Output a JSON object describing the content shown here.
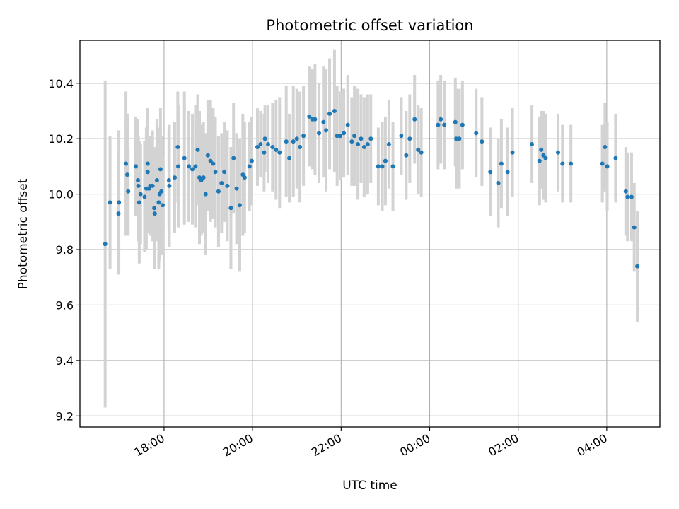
{
  "chart_data": {
    "type": "scatter",
    "title": "Photometric offset variation",
    "xlabel": "UTC time",
    "ylabel": "Photometric offset",
    "x_unit": "hours since 00:00 UTC of first night (values above 24 are next day)",
    "xlim": [
      16.1,
      29.2
    ],
    "ylim": [
      9.16,
      10.555
    ],
    "x_ticks": [
      {
        "value": 18,
        "label": "18:00"
      },
      {
        "value": 20,
        "label": "20:00"
      },
      {
        "value": 22,
        "label": "22:00"
      },
      {
        "value": 24,
        "label": "00:00"
      },
      {
        "value": 26,
        "label": "02:00"
      },
      {
        "value": 28,
        "label": "04:00"
      }
    ],
    "y_ticks": [
      "9.2",
      "9.4",
      "9.6",
      "9.8",
      "10.0",
      "10.2",
      "10.4"
    ],
    "grid": true,
    "colors": {
      "marker": "#1f77b4",
      "errorbar": "#d3d3d3",
      "grid": "#b0b0b0"
    },
    "series": [
      {
        "marker": "dot",
        "points": [
          [
            16.67,
            9.82,
            0.59
          ],
          [
            16.78,
            9.97,
            0.24
          ],
          [
            16.97,
            9.93,
            0.22
          ],
          [
            16.98,
            9.97,
            0.26
          ],
          [
            17.14,
            10.11,
            0.26
          ],
          [
            17.17,
            10.07,
            0.22
          ],
          [
            17.19,
            10.01,
            0.16
          ],
          [
            17.36,
            10.1,
            0.18
          ],
          [
            17.41,
            10.05,
            0.22
          ],
          [
            17.42,
            10.03,
            0.18
          ],
          [
            17.44,
            9.97,
            0.22
          ],
          [
            17.47,
            10.0,
            0.18
          ],
          [
            17.56,
            9.99,
            0.2
          ],
          [
            17.6,
            10.02,
            0.22
          ],
          [
            17.63,
            10.11,
            0.2
          ],
          [
            17.63,
            10.08,
            0.18
          ],
          [
            17.66,
            10.02,
            0.16
          ],
          [
            17.69,
            10.03,
            0.18
          ],
          [
            17.74,
            10.03,
            0.2
          ],
          [
            17.78,
            9.95,
            0.22
          ],
          [
            17.79,
            9.93,
            0.2
          ],
          [
            17.84,
            10.05,
            0.22
          ],
          [
            17.88,
            9.97,
            0.24
          ],
          [
            17.9,
            10.0,
            0.24
          ],
          [
            17.92,
            10.09,
            0.22
          ],
          [
            17.94,
            10.01,
            0.2
          ],
          [
            17.97,
            9.96,
            0.18
          ],
          [
            18.11,
            10.05,
            0.18
          ],
          [
            18.12,
            10.03,
            0.22
          ],
          [
            18.24,
            10.06,
            0.2
          ],
          [
            18.31,
            10.17,
            0.2
          ],
          [
            18.32,
            10.1,
            0.22
          ],
          [
            18.46,
            10.13,
            0.24
          ],
          [
            18.56,
            10.1,
            0.2
          ],
          [
            18.64,
            10.09,
            0.2
          ],
          [
            18.71,
            10.1,
            0.22
          ],
          [
            18.76,
            10.16,
            0.2
          ],
          [
            18.8,
            10.06,
            0.24
          ],
          [
            18.84,
            10.05,
            0.2
          ],
          [
            18.89,
            10.06,
            0.2
          ],
          [
            18.94,
            10.0,
            0.22
          ],
          [
            18.99,
            10.14,
            0.2
          ],
          [
            19.05,
            10.12,
            0.22
          ],
          [
            19.11,
            10.11,
            0.2
          ],
          [
            19.16,
            10.08,
            0.2
          ],
          [
            19.23,
            10.01,
            0.2
          ],
          [
            19.3,
            10.04,
            0.18
          ],
          [
            19.36,
            10.08,
            0.18
          ],
          [
            19.43,
            10.03,
            0.2
          ],
          [
            19.51,
            9.95,
            0.22
          ],
          [
            19.57,
            10.13,
            0.2
          ],
          [
            19.64,
            10.02,
            0.2
          ],
          [
            19.71,
            9.96,
            0.24
          ],
          [
            19.78,
            10.07,
            0.22
          ],
          [
            19.82,
            10.06,
            0.2
          ],
          [
            19.93,
            10.1,
            0.16
          ],
          [
            19.98,
            10.12,
            0.16
          ],
          [
            20.11,
            10.17,
            0.14
          ],
          [
            20.18,
            10.18,
            0.12
          ],
          [
            20.26,
            10.15,
            0.14
          ],
          [
            20.28,
            10.2,
            0.12
          ],
          [
            20.35,
            10.18,
            0.14
          ],
          [
            20.45,
            10.17,
            0.16
          ],
          [
            20.53,
            10.16,
            0.18
          ],
          [
            20.61,
            10.15,
            0.2
          ],
          [
            20.76,
            10.19,
            0.2
          ],
          [
            20.83,
            10.13,
            0.16
          ],
          [
            20.92,
            10.19,
            0.2
          ],
          [
            21.0,
            10.2,
            0.18
          ],
          [
            21.07,
            10.17,
            0.2
          ],
          [
            21.15,
            10.21,
            0.18
          ],
          [
            21.28,
            10.28,
            0.18
          ],
          [
            21.35,
            10.27,
            0.18
          ],
          [
            21.41,
            10.27,
            0.2
          ],
          [
            21.5,
            10.22,
            0.18
          ],
          [
            21.6,
            10.26,
            0.2
          ],
          [
            21.66,
            10.23,
            0.22
          ],
          [
            21.74,
            10.29,
            0.2
          ],
          [
            21.85,
            10.3,
            0.22
          ],
          [
            21.91,
            10.21,
            0.18
          ],
          [
            21.98,
            10.21,
            0.16
          ],
          [
            22.06,
            10.22,
            0.16
          ],
          [
            22.15,
            10.25,
            0.18
          ],
          [
            22.24,
            10.19,
            0.16
          ],
          [
            22.3,
            10.21,
            0.18
          ],
          [
            22.38,
            10.18,
            0.2
          ],
          [
            22.45,
            10.2,
            0.16
          ],
          [
            22.52,
            10.17,
            0.18
          ],
          [
            22.6,
            10.18,
            0.18
          ],
          [
            22.67,
            10.2,
            0.16
          ],
          [
            22.84,
            10.1,
            0.14
          ],
          [
            22.93,
            10.1,
            0.16
          ],
          [
            23.0,
            10.12,
            0.16
          ],
          [
            23.08,
            10.18,
            0.16
          ],
          [
            23.17,
            10.1,
            0.16
          ],
          [
            23.36,
            10.21,
            0.14
          ],
          [
            23.47,
            10.14,
            0.16
          ],
          [
            23.55,
            10.2,
            0.16
          ],
          [
            23.66,
            10.27,
            0.16
          ],
          [
            23.74,
            10.16,
            0.16
          ],
          [
            23.81,
            10.15,
            0.16
          ],
          [
            24.19,
            10.25,
            0.16
          ],
          [
            24.25,
            10.27,
            0.16
          ],
          [
            24.33,
            10.25,
            0.16
          ],
          [
            24.58,
            10.26,
            0.16
          ],
          [
            24.6,
            10.2,
            0.18
          ],
          [
            24.67,
            10.2,
            0.18
          ],
          [
            24.74,
            10.25,
            0.16
          ],
          [
            25.05,
            10.22,
            0.16
          ],
          [
            25.18,
            10.19,
            0.16
          ],
          [
            25.37,
            10.08,
            0.16
          ],
          [
            25.55,
            10.04,
            0.16
          ],
          [
            25.62,
            10.11,
            0.16
          ],
          [
            25.76,
            10.08,
            0.16
          ],
          [
            25.87,
            10.15,
            0.16
          ],
          [
            26.31,
            10.18,
            0.14
          ],
          [
            26.48,
            10.12,
            0.16
          ],
          [
            26.52,
            10.16,
            0.14
          ],
          [
            26.57,
            10.14,
            0.16
          ],
          [
            26.62,
            10.13,
            0.16
          ],
          [
            26.9,
            10.15,
            0.14
          ],
          [
            27.0,
            10.11,
            0.14
          ],
          [
            27.19,
            10.11,
            0.14
          ],
          [
            27.9,
            10.11,
            0.14
          ],
          [
            27.96,
            10.17,
            0.16
          ],
          [
            28.01,
            10.1,
            0.16
          ],
          [
            28.2,
            10.13,
            0.16
          ],
          [
            28.43,
            10.01,
            0.16
          ],
          [
            28.47,
            9.99,
            0.16
          ],
          [
            28.56,
            9.99,
            0.16
          ],
          [
            28.62,
            9.88,
            0.16
          ],
          [
            28.69,
            9.74,
            0.2
          ]
        ]
      }
    ]
  }
}
